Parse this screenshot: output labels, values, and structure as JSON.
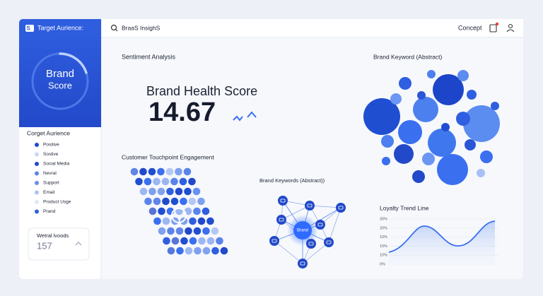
{
  "sidebar": {
    "brand": "Target Aurience:",
    "gauge_title": "Brand",
    "gauge_subtitle": "Score",
    "audience_title": "Corget Aurience",
    "audience_items": [
      "Positive",
      "Sostive",
      "Social Media",
      "Nevral",
      "Support",
      "Email",
      "Product Usge",
      "Prand"
    ],
    "metric_card": {
      "label": "Wetral lvoods",
      "value": "157"
    }
  },
  "topbar": {
    "search": "BraaS InsighS",
    "user": "Concept"
  },
  "panels": {
    "sentiment": {
      "title": "Sentiment Analysis",
      "score_label": "Brand Health Score",
      "score": "14.67"
    },
    "keyword_cloud": {
      "title": "Brand Keyword (Abstract)"
    },
    "touchpoints": {
      "title": "Customer Touchpoint Engagement"
    },
    "keyword_network": {
      "title": "Brand Keywords (Abstract))",
      "center": "Brand"
    },
    "loyalty": {
      "title": "Loyalty Trend Line",
      "y_labels": [
        "30%",
        "20%",
        "10%",
        "10%",
        "10%",
        "0%"
      ]
    }
  }
}
